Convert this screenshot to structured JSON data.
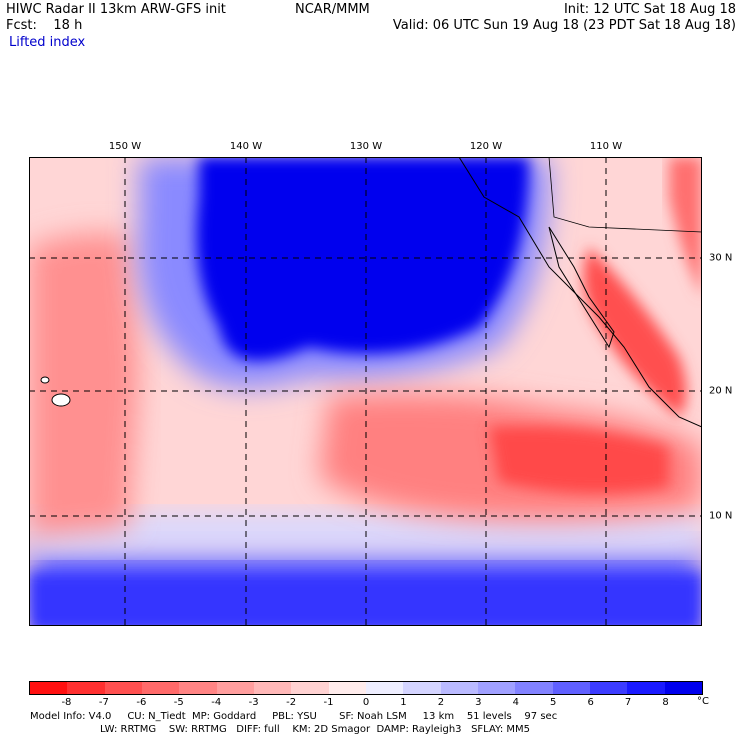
{
  "header": {
    "title": "HIWC Radar II 13km ARW-GFS init",
    "center": "NCAR/MMM",
    "init": "Init: 12 UTC Sat 18 Aug 18",
    "fcst": "Fcst:    18 h",
    "valid": "Valid: 06 UTC Sun 19 Aug 18 (23 PDT Sat 18 Aug 18)",
    "field": "Lifted index"
  },
  "map": {
    "longitude_labels": [
      "150 W",
      "140 W",
      "130 W",
      "120 W",
      "110 W"
    ],
    "latitude_labels": [
      "30 N",
      "20 N",
      "10 N"
    ]
  },
  "colorbar": {
    "labels": [
      "-8",
      "-7",
      "-6",
      "-5",
      "-4",
      "-3",
      "-2",
      "-1",
      "0",
      "1",
      "2",
      "3",
      "4",
      "5",
      "6",
      "7",
      "8"
    ],
    "unit": "°C",
    "colors": [
      "#ff1010",
      "#ff3030",
      "#ff5050",
      "#ff6a6a",
      "#ff8484",
      "#ff9e9e",
      "#ffb8b8",
      "#ffd2d2",
      "#ffecec",
      "#eeeeff",
      "#d4d4ff",
      "#babaff",
      "#a0a0ff",
      "#8282ff",
      "#6060ff",
      "#3c3cff",
      "#1a1aff",
      "#0000ee"
    ]
  },
  "footer": {
    "line1": "Model Info: V4.0     CU: N_Tiedt  MP: Goddard     PBL: YSU       SF: Noah LSM     13 km    51 levels    97 sec",
    "line2": "LW: RRTMG    SW: RRTMG   DIFF: full    KM: 2D Smagor  DAMP: Rayleigh3   SFLAY: MM5"
  }
}
